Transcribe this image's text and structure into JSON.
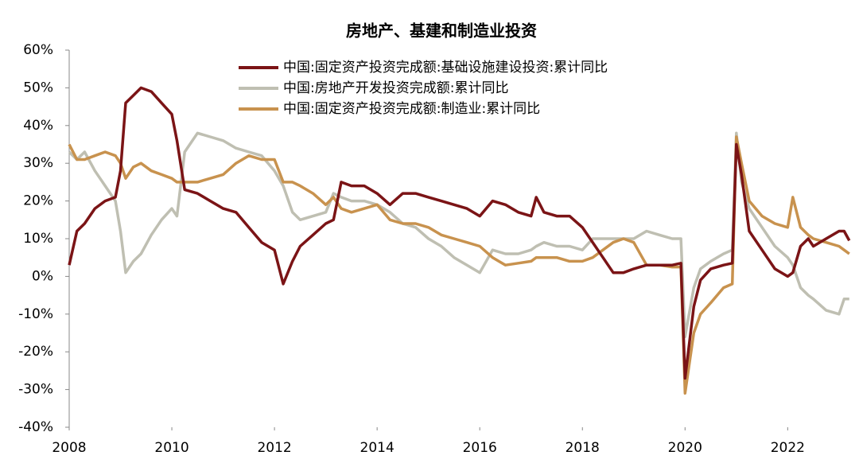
{
  "chart_data": {
    "type": "line",
    "title": "房地产、基建和制造业投资",
    "x": [
      2008,
      2008.15,
      2008.3,
      2008.5,
      2008.7,
      2008.9,
      2009.0,
      2009.1,
      2009.25,
      2009.4,
      2009.6,
      2009.8,
      2010.0,
      2010.1,
      2010.25,
      2010.5,
      2010.75,
      2011.0,
      2011.25,
      2011.5,
      2011.75,
      2012.0,
      2012.17,
      2012.35,
      2012.5,
      2012.75,
      2013.0,
      2013.15,
      2013.3,
      2013.5,
      2013.75,
      2014.0,
      2014.25,
      2014.5,
      2014.75,
      2015.0,
      2015.25,
      2015.5,
      2015.75,
      2016.0,
      2016.25,
      2016.5,
      2016.75,
      2017.0,
      2017.1,
      2017.25,
      2017.5,
      2017.75,
      2018.0,
      2018.2,
      2018.4,
      2018.6,
      2018.8,
      2019.0,
      2019.25,
      2019.5,
      2019.75,
      2019.92,
      2020.0,
      2020.17,
      2020.3,
      2020.5,
      2020.75,
      2020.92,
      2021.0,
      2021.1,
      2021.25,
      2021.5,
      2021.75,
      2022.0,
      2022.1,
      2022.25,
      2022.4,
      2022.5,
      2022.75,
      2023.0,
      2023.1,
      2023.2
    ],
    "series": [
      {
        "name": "中国:固定资产投资完成额:基础设施建设投资:累计同比",
        "color": "#7b1416",
        "values": [
          3,
          12,
          14,
          18,
          20,
          21,
          28,
          46,
          48,
          50,
          49,
          46,
          43,
          36,
          23,
          22,
          20,
          18,
          17,
          13,
          9,
          7,
          -2,
          4,
          8,
          11,
          14,
          15,
          25,
          24,
          24,
          22,
          19,
          22,
          22,
          21,
          20,
          19,
          18,
          16,
          20,
          19,
          17,
          16,
          21,
          17,
          16,
          16,
          13,
          9,
          5,
          1,
          1,
          2,
          3,
          3,
          3,
          3.5,
          -27,
          -8,
          -1,
          2,
          3,
          3.5,
          35,
          27,
          12,
          7,
          2,
          0,
          1,
          8,
          10,
          8,
          10,
          12,
          12,
          9.5
        ]
      },
      {
        "name": "中国:房地产开发投资完成额:累计同比",
        "color": "#bfbfb2",
        "values": [
          33,
          31,
          33,
          28,
          24,
          20,
          12,
          1,
          4,
          6,
          11,
          15,
          18,
          16,
          33,
          38,
          37,
          36,
          34,
          33,
          32,
          28,
          24,
          17,
          15,
          16,
          17,
          22,
          21,
          20,
          20,
          19,
          17,
          14,
          13,
          10,
          8,
          5,
          3,
          1,
          7,
          6,
          6,
          7,
          8,
          9,
          8,
          8,
          7,
          10,
          10,
          10,
          10,
          10,
          12,
          11,
          10,
          10,
          -16,
          -3,
          2,
          4,
          6,
          7,
          38,
          25,
          18,
          13,
          8,
          5,
          3,
          -3,
          -5,
          -6,
          -9,
          -10,
          -6,
          -6
        ]
      },
      {
        "name": "中国:固定资产投资完成额:制造业:累计同比",
        "color": "#c8924e",
        "values": [
          35,
          31,
          31,
          32,
          33,
          32,
          30,
          26,
          29,
          30,
          28,
          27,
          26,
          25,
          25,
          25,
          26,
          27,
          30,
          32,
          31,
          31,
          25,
          25,
          24,
          22,
          19,
          21,
          18,
          17,
          18,
          19,
          15,
          14,
          14,
          13,
          11,
          10,
          9,
          8,
          5,
          3,
          3.5,
          4,
          5,
          5,
          5,
          4,
          4,
          5,
          7,
          9,
          10,
          9,
          3,
          3,
          2.5,
          2.5,
          -31,
          -15,
          -10,
          -7,
          -3,
          -2,
          37,
          30,
          20,
          16,
          14,
          13,
          21,
          13,
          11,
          10,
          9,
          8,
          7,
          6
        ]
      }
    ],
    "xlim": [
      2008,
      2023.25
    ],
    "xticks": [
      2008,
      2010,
      2012,
      2014,
      2016,
      2018,
      2020,
      2022
    ],
    "ylim": [
      -40,
      60
    ],
    "yticks": [
      {
        "value": -40,
        "label": "-40%"
      },
      {
        "value": -30,
        "label": "-30%"
      },
      {
        "value": -20,
        "label": "-20%"
      },
      {
        "value": -10,
        "label": "-10%"
      },
      {
        "value": 0,
        "label": "0%"
      },
      {
        "value": 10,
        "label": "10%"
      },
      {
        "value": 20,
        "label": "20%"
      },
      {
        "value": 30,
        "label": "30%"
      },
      {
        "value": 40,
        "label": "40%"
      },
      {
        "value": 50,
        "label": "50%"
      },
      {
        "value": 60,
        "label": "60%"
      }
    ]
  }
}
